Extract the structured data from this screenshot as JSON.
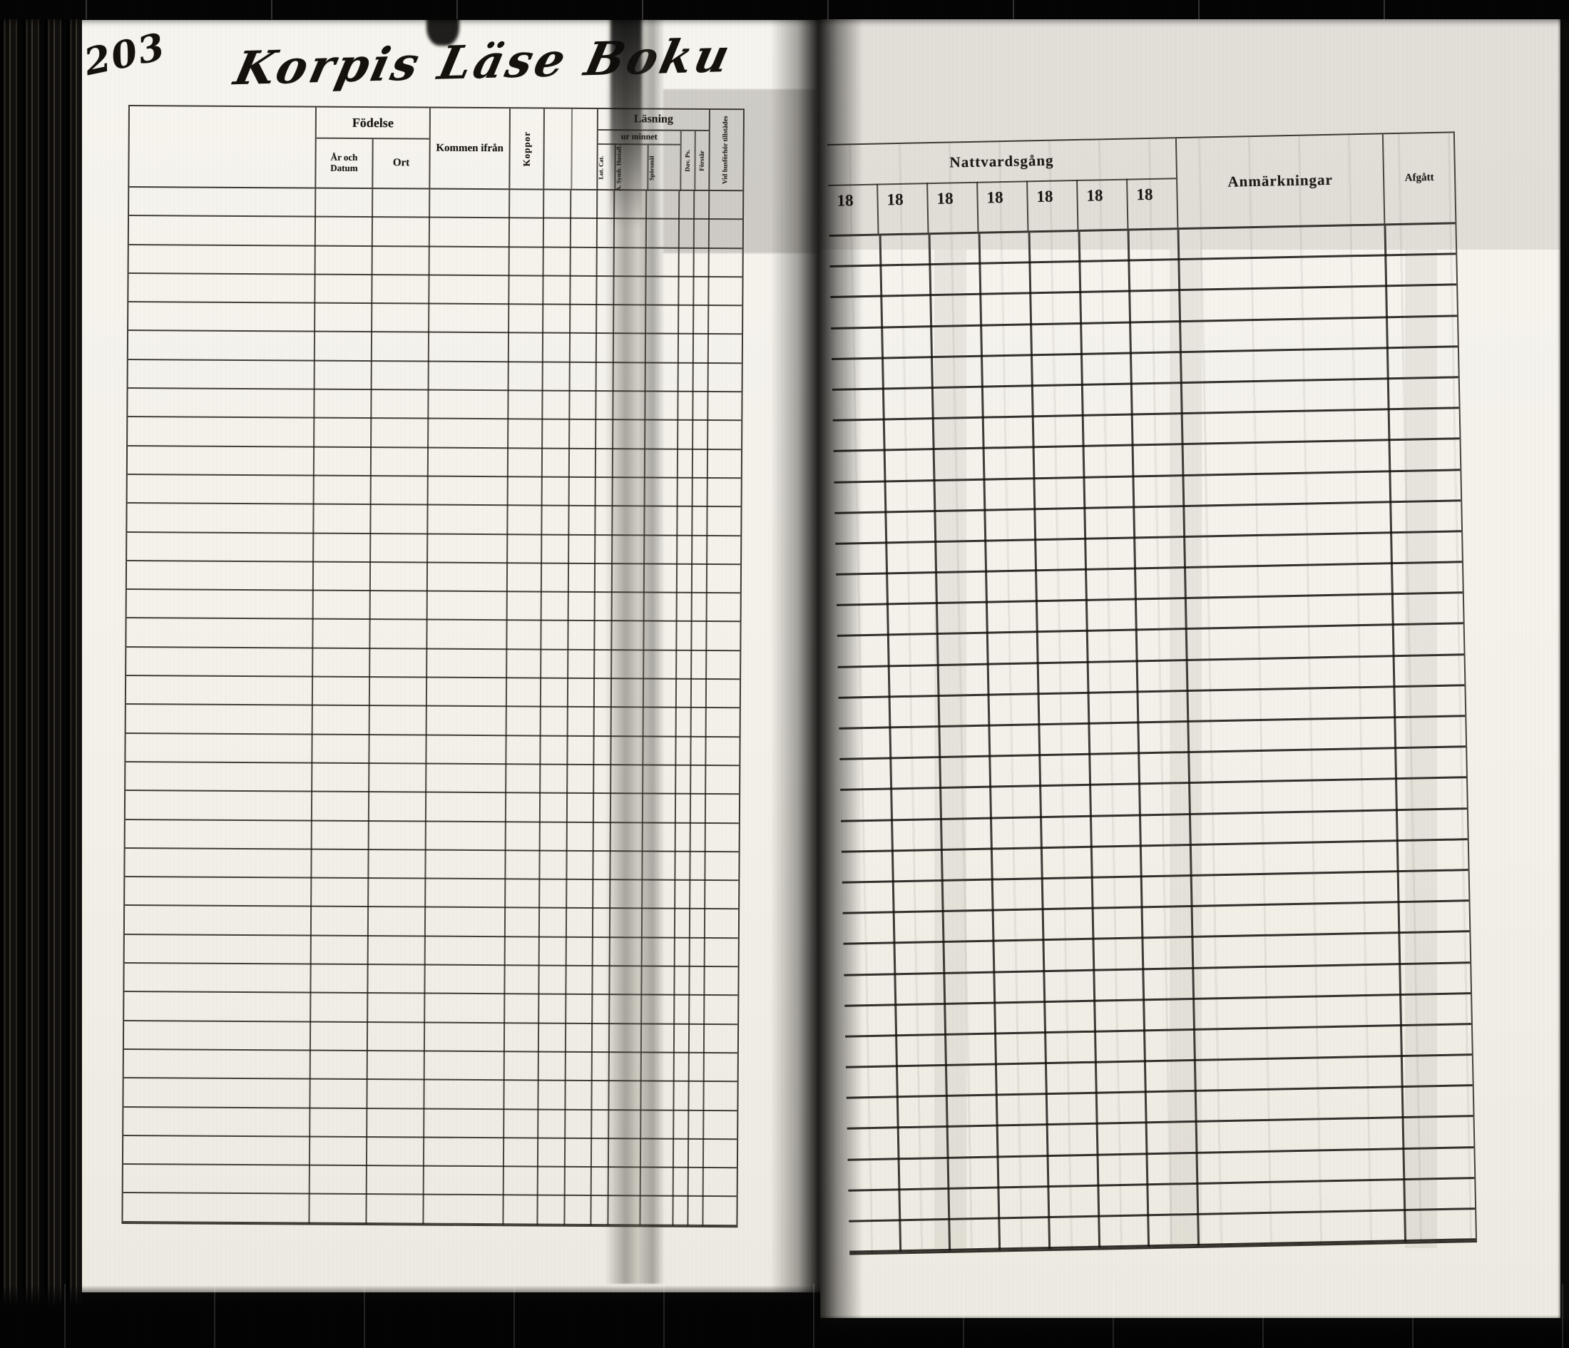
{
  "scan": {
    "page_number": "203",
    "handwritten_title": "Korpis Läse Boku"
  },
  "left_table": {
    "fodelse_group_label": "Födelse",
    "ar_och_datum_label": "År och Datum",
    "ort_label": "Ort",
    "kommen_ifran_label": "Kommen ifrån",
    "koppor_label": "Koppor",
    "lasning_group_label": "Läsning",
    "ur_minnet_label": "ur minnet",
    "lut_cat_label": "Lut. Cat.",
    "symb_hustafl_label": "A. Symb. Hustafl.",
    "sporsmal_label": "Spörsmål",
    "dav_ps_label": "Dav. Ps.",
    "forstar_label": "Förstår",
    "vid_husforhor_label": "Vid husförhör tillstädes",
    "body_rows": 36
  },
  "right_table": {
    "nattvardsgang_label": "Nattvardsgång",
    "year_columns": [
      "18",
      "18",
      "18",
      "18",
      "18",
      "18",
      "18"
    ],
    "anmarkningar_label": "Anmärkningar",
    "afgatt_label": "Afgått",
    "body_rows": 33
  }
}
